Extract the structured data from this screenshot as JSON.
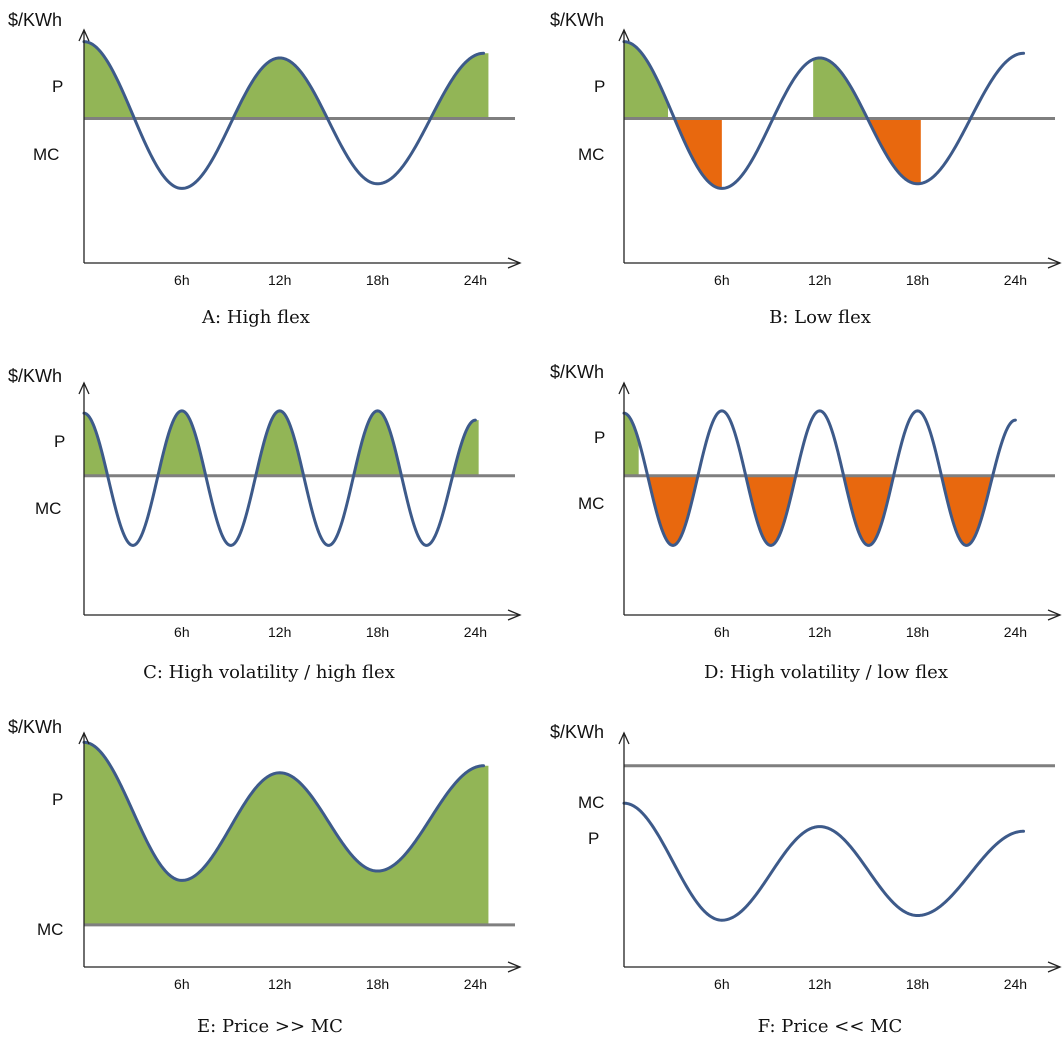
{
  "colors": {
    "price_curve": "#3d5a8a",
    "mc_line": "#7f7f7f",
    "profit_fill": "#92b556",
    "loss_fill": "#e8680e",
    "axis": "#222222"
  },
  "chart_data": [
    {
      "type": "line",
      "caption": "A: High flex",
      "ylabel": "$/KWh",
      "level_labels": {
        "p": "P",
        "mc": "MC"
      },
      "x_ticks": [
        "6h",
        "12h",
        "18h",
        "24h"
      ],
      "xlim": [
        0,
        26
      ],
      "ylim": [
        0,
        1
      ],
      "mc_level": 0.62,
      "price": {
        "x": [
          0,
          6,
          12,
          18,
          24.5
        ],
        "y": [
          0.95,
          0.32,
          0.88,
          0.34,
          0.9
        ]
      },
      "shading": [
        {
          "fill": "profit",
          "from": 0,
          "to": 24.8,
          "where": "price_above_mc"
        }
      ]
    },
    {
      "type": "line",
      "caption": "B: Low flex",
      "ylabel": "$/KWh",
      "level_labels": {
        "p": "P",
        "mc": "MC"
      },
      "x_ticks": [
        "6h",
        "12h",
        "18h",
        "24h"
      ],
      "xlim": [
        0,
        26
      ],
      "ylim": [
        0,
        1
      ],
      "mc_level": 0.62,
      "price": {
        "x": [
          0,
          6,
          12,
          18,
          24.5
        ],
        "y": [
          0.95,
          0.32,
          0.88,
          0.34,
          0.9
        ]
      },
      "shading": [
        {
          "fill": "profit",
          "from": 0,
          "to": 2.7,
          "where": "price_above_mc"
        },
        {
          "fill": "loss",
          "from": 2.7,
          "to": 6,
          "where": "price_below_mc"
        },
        {
          "fill": "profit",
          "from": 11.6,
          "to": 15,
          "where": "price_above_mc"
        },
        {
          "fill": "loss",
          "from": 15,
          "to": 18.2,
          "where": "price_below_mc"
        }
      ]
    },
    {
      "type": "line",
      "caption": "C: High volatility / high flex",
      "ylabel": "$/KWh",
      "level_labels": {
        "p": "P",
        "mc": "MC"
      },
      "x_ticks": [
        "6h",
        "12h",
        "18h",
        "24h"
      ],
      "xlim": [
        0,
        26
      ],
      "ylim": [
        0,
        1
      ],
      "mc_level": 0.6,
      "price": {
        "x": [
          0,
          3,
          6,
          9,
          12,
          15,
          18,
          21,
          24
        ],
        "y": [
          0.87,
          0.3,
          0.88,
          0.3,
          0.88,
          0.3,
          0.88,
          0.3,
          0.84
        ]
      },
      "shading": [
        {
          "fill": "profit",
          "from": 0,
          "to": 24.2,
          "where": "price_above_mc"
        }
      ]
    },
    {
      "type": "line",
      "caption": "D: High volatility / low flex",
      "ylabel": "$/KWh",
      "level_labels": {
        "p": "P",
        "mc": "MC"
      },
      "x_ticks": [
        "6h",
        "12h",
        "18h",
        "24h"
      ],
      "xlim": [
        0,
        26
      ],
      "ylim": [
        0,
        1
      ],
      "mc_level": 0.6,
      "price": {
        "x": [
          0,
          3,
          6,
          9,
          12,
          15,
          18,
          21,
          24
        ],
        "y": [
          0.87,
          0.3,
          0.88,
          0.3,
          0.88,
          0.3,
          0.88,
          0.3,
          0.84
        ]
      },
      "shading": [
        {
          "fill": "profit",
          "from": 0,
          "to": 0.9,
          "where": "price_above_mc"
        },
        {
          "fill": "loss",
          "from": 0.9,
          "to": 24,
          "where": "price_below_mc"
        }
      ]
    },
    {
      "type": "line",
      "caption": "E: Price >> MC",
      "ylabel": "$/KWh",
      "level_labels": {
        "p": "P",
        "mc": "MC"
      },
      "x_ticks": [
        "6h",
        "12h",
        "18h",
        "24h"
      ],
      "xlim": [
        0,
        26
      ],
      "ylim": [
        0,
        1
      ],
      "mc_level": 0.18,
      "price": {
        "x": [
          0,
          6,
          12,
          18,
          24.5
        ],
        "y": [
          0.96,
          0.37,
          0.83,
          0.41,
          0.86
        ]
      },
      "shading": [
        {
          "fill": "profit",
          "from": 0,
          "to": 24.8,
          "where": "price_above_mc"
        }
      ]
    },
    {
      "type": "line",
      "caption": "F: Price << MC",
      "ylabel": "$/KWh",
      "level_labels": {
        "p": "P",
        "mc": "MC"
      },
      "x_ticks": [
        "6h",
        "12h",
        "18h",
        "24h"
      ],
      "xlim": [
        0,
        26
      ],
      "ylim": [
        0,
        1
      ],
      "mc_level": 0.86,
      "price": {
        "x": [
          0,
          6,
          12,
          18,
          24.5
        ],
        "y": [
          0.7,
          0.2,
          0.6,
          0.22,
          0.58
        ]
      },
      "shading": []
    }
  ]
}
